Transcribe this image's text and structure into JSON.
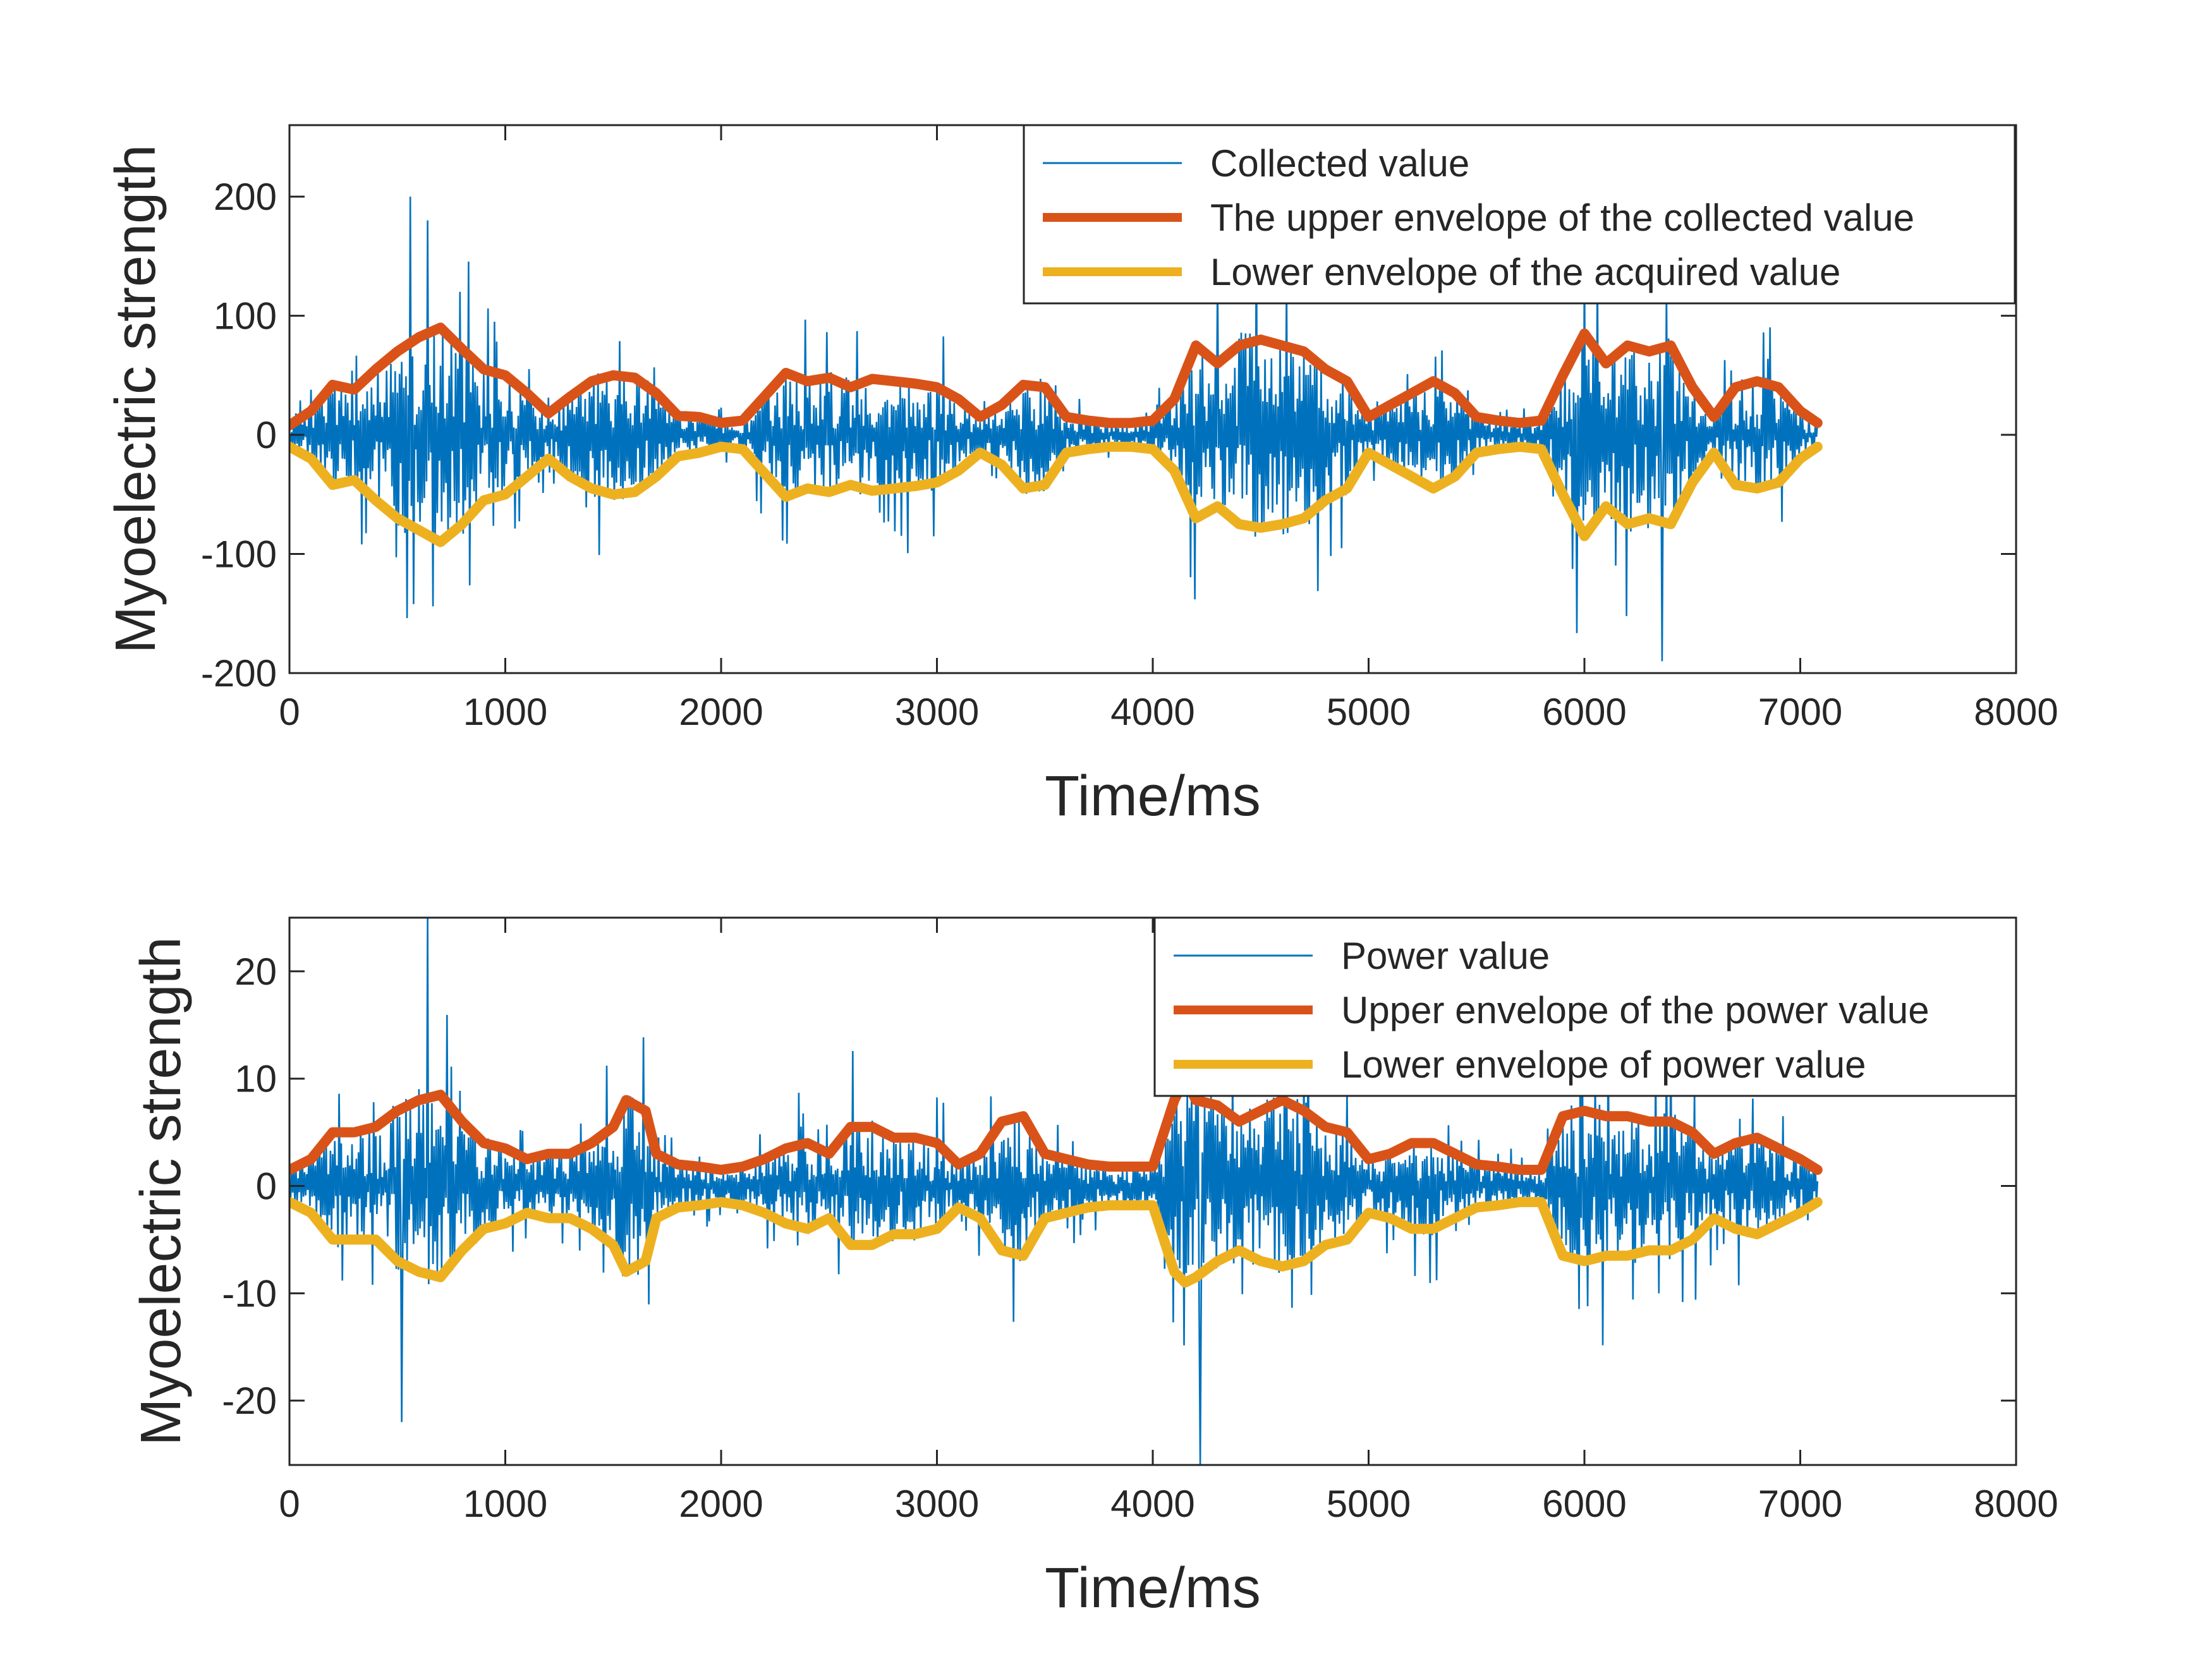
{
  "colors": {
    "signal": "#0072BD",
    "upper_envelope": "#D95319",
    "lower_envelope": "#EDB120",
    "axes": "#262626",
    "background": "#FFFFFF"
  },
  "chart_data": [
    {
      "type": "line",
      "xlabel": "Time/ms",
      "ylabel": "Myoelectric strength",
      "xlim": [
        0,
        8000
      ],
      "ylim": [
        -200,
        260
      ],
      "xticks": [
        "0",
        "1000",
        "2000",
        "3000",
        "4000",
        "5000",
        "6000",
        "7000",
        "8000"
      ],
      "yticks": [
        "-200",
        "-100",
        "0",
        "100",
        "200"
      ],
      "ytick_values": [
        -200,
        -100,
        0,
        100,
        200
      ],
      "legend_position": "top-right",
      "grid": false,
      "series": [
        {
          "name": "Collected value",
          "color": "#0072BD",
          "style": "thin",
          "x_range": [
            0,
            7080
          ],
          "sampling_ms": 5,
          "note_peak_values": [
            [
              560,
              200
            ],
            [
              640,
              180
            ],
            [
              4480,
              185
            ],
            [
              6360,
              -190
            ]
          ]
        },
        {
          "name": "The upper envelope of the collected value",
          "color": "#D95319",
          "style": "thick",
          "x": [
            0,
            100,
            200,
            300,
            400,
            500,
            600,
            700,
            800,
            900,
            1000,
            1100,
            1200,
            1300,
            1400,
            1500,
            1600,
            1700,
            1800,
            1900,
            2000,
            2100,
            2200,
            2300,
            2400,
            2500,
            2600,
            2700,
            2800,
            2900,
            3000,
            3100,
            3200,
            3300,
            3400,
            3500,
            3600,
            3700,
            3800,
            3900,
            4000,
            4100,
            4200,
            4300,
            4400,
            4500,
            4600,
            4700,
            4800,
            4900,
            5000,
            5100,
            5200,
            5300,
            5400,
            5500,
            5600,
            5700,
            5800,
            5900,
            6000,
            6100,
            6200,
            6300,
            6400,
            6500,
            6600,
            6700,
            6800,
            6900,
            7000,
            7080
          ],
          "y": [
            8,
            20,
            42,
            38,
            55,
            70,
            82,
            90,
            72,
            55,
            50,
            35,
            18,
            32,
            45,
            50,
            48,
            35,
            16,
            15,
            10,
            12,
            32,
            52,
            45,
            48,
            40,
            47,
            45,
            43,
            40,
            30,
            15,
            25,
            42,
            40,
            15,
            12,
            10,
            10,
            12,
            30,
            75,
            60,
            75,
            80,
            75,
            70,
            55,
            45,
            15,
            25,
            35,
            45,
            35,
            15,
            12,
            10,
            12,
            50,
            85,
            60,
            75,
            70,
            75,
            40,
            15,
            40,
            45,
            40,
            20,
            10
          ]
        },
        {
          "name": "Lower envelope of the acquired value",
          "color": "#EDB120",
          "style": "thick",
          "x": [
            0,
            100,
            200,
            300,
            400,
            500,
            600,
            700,
            800,
            900,
            1000,
            1100,
            1200,
            1300,
            1400,
            1500,
            1600,
            1700,
            1800,
            1900,
            2000,
            2100,
            2200,
            2300,
            2400,
            2500,
            2600,
            2700,
            2800,
            2900,
            3000,
            3100,
            3200,
            3300,
            3400,
            3500,
            3600,
            3700,
            3800,
            3900,
            4000,
            4100,
            4200,
            4300,
            4400,
            4500,
            4600,
            4700,
            4800,
            4900,
            5000,
            5100,
            5200,
            5300,
            5400,
            5500,
            5600,
            5700,
            5800,
            5900,
            6000,
            6100,
            6200,
            6300,
            6400,
            6500,
            6600,
            6700,
            6800,
            6900,
            7000,
            7080
          ],
          "y": [
            -10,
            -20,
            -42,
            -38,
            -55,
            -70,
            -80,
            -90,
            -75,
            -55,
            -50,
            -35,
            -20,
            -35,
            -45,
            -50,
            -48,
            -35,
            -18,
            -15,
            -10,
            -12,
            -32,
            -52,
            -45,
            -48,
            -42,
            -47,
            -45,
            -43,
            -40,
            -30,
            -15,
            -25,
            -45,
            -42,
            -15,
            -12,
            -10,
            -10,
            -12,
            -30,
            -70,
            -60,
            -75,
            -78,
            -75,
            -70,
            -55,
            -45,
            -15,
            -25,
            -35,
            -45,
            -35,
            -15,
            -12,
            -10,
            -12,
            -50,
            -85,
            -60,
            -75,
            -70,
            -75,
            -40,
            -15,
            -42,
            -45,
            -40,
            -20,
            -10
          ]
        }
      ]
    },
    {
      "type": "line",
      "xlabel": "Time/ms",
      "ylabel": "Myoelectric strength",
      "xlim": [
        0,
        8000
      ],
      "ylim": [
        -26,
        25
      ],
      "xticks": [
        "0",
        "1000",
        "2000",
        "3000",
        "4000",
        "5000",
        "6000",
        "7000",
        "8000"
      ],
      "yticks": [
        "-20",
        "-10",
        "0",
        "10",
        "20"
      ],
      "ytick_values": [
        -20,
        -10,
        0,
        10,
        20
      ],
      "legend_position": "top-right",
      "grid": false,
      "series": [
        {
          "name": "Power value",
          "color": "#0072BD",
          "style": "thin",
          "x_range": [
            0,
            7080
          ],
          "sampling_ms": 5,
          "note_peak_values": [
            [
              640,
              25
            ],
            [
              4220,
              -26
            ],
            [
              520,
              -22
            ]
          ]
        },
        {
          "name": "Upper envelope of the power value",
          "color": "#D95319",
          "style": "thick",
          "x": [
            0,
            100,
            200,
            300,
            400,
            500,
            600,
            700,
            800,
            900,
            1000,
            1100,
            1200,
            1300,
            1400,
            1500,
            1560,
            1650,
            1700,
            1800,
            1900,
            2000,
            2100,
            2200,
            2300,
            2400,
            2500,
            2600,
            2700,
            2800,
            2900,
            3000,
            3100,
            3200,
            3300,
            3400,
            3500,
            3600,
            3700,
            3800,
            3900,
            4000,
            4100,
            4150,
            4200,
            4300,
            4400,
            4500,
            4600,
            4700,
            4800,
            4900,
            5000,
            5100,
            5200,
            5300,
            5400,
            5500,
            5600,
            5700,
            5800,
            5900,
            6000,
            6100,
            6200,
            6300,
            6400,
            6500,
            6600,
            6700,
            6800,
            6900,
            7000,
            7080
          ],
          "y": [
            1.5,
            2.5,
            5,
            5,
            5.5,
            7,
            8,
            8.5,
            6,
            4,
            3.5,
            2.5,
            3,
            3,
            4,
            5.5,
            8,
            7,
            3,
            2,
            1.8,
            1.5,
            1.8,
            2.5,
            3.5,
            4,
            3,
            5.5,
            5.5,
            4.5,
            4.5,
            4,
            2,
            3,
            6,
            6.5,
            3,
            2.5,
            2,
            1.8,
            1.8,
            1.8,
            8,
            10,
            8,
            7.5,
            6,
            7,
            8,
            7,
            5.5,
            5,
            2.5,
            3,
            4,
            4,
            3,
            2,
            1.8,
            1.5,
            1.5,
            6.5,
            7,
            6.5,
            6.5,
            6,
            6,
            5,
            3,
            4,
            4.5,
            3.5,
            2.5,
            1.5
          ]
        },
        {
          "name": "Lower envelope of power value",
          "color": "#EDB120",
          "style": "thick",
          "x": [
            0,
            100,
            200,
            300,
            400,
            500,
            600,
            700,
            800,
            900,
            1000,
            1100,
            1200,
            1300,
            1400,
            1500,
            1560,
            1650,
            1700,
            1800,
            1900,
            2000,
            2100,
            2200,
            2300,
            2400,
            2500,
            2600,
            2700,
            2800,
            2900,
            3000,
            3100,
            3200,
            3300,
            3400,
            3500,
            3600,
            3700,
            3800,
            3900,
            4000,
            4100,
            4150,
            4200,
            4300,
            4400,
            4500,
            4600,
            4700,
            4800,
            4900,
            5000,
            5100,
            5200,
            5300,
            5400,
            5500,
            5600,
            5700,
            5800,
            5900,
            6000,
            6100,
            6200,
            6300,
            6400,
            6500,
            6600,
            6700,
            6800,
            6900,
            7000,
            7080
          ],
          "y": [
            -1.5,
            -2.5,
            -5,
            -5,
            -5,
            -7,
            -8,
            -8.5,
            -6,
            -4,
            -3.5,
            -2.5,
            -3,
            -3,
            -4,
            -5.5,
            -8,
            -7,
            -3,
            -2,
            -1.8,
            -1.5,
            -1.8,
            -2.5,
            -3.5,
            -4,
            -3,
            -5.5,
            -5.5,
            -4.5,
            -4.5,
            -4,
            -2,
            -3,
            -6,
            -6.5,
            -3,
            -2.5,
            -2,
            -1.8,
            -1.8,
            -1.8,
            -8,
            -9,
            -8.5,
            -7,
            -6,
            -7,
            -7.5,
            -7,
            -5.5,
            -5,
            -2.5,
            -3,
            -4,
            -4,
            -3,
            -2,
            -1.8,
            -1.5,
            -1.5,
            -6.5,
            -7,
            -6.5,
            -6.5,
            -6,
            -6,
            -5,
            -3,
            -4,
            -4.5,
            -3.5,
            -2.5,
            -1.5
          ]
        }
      ]
    }
  ]
}
